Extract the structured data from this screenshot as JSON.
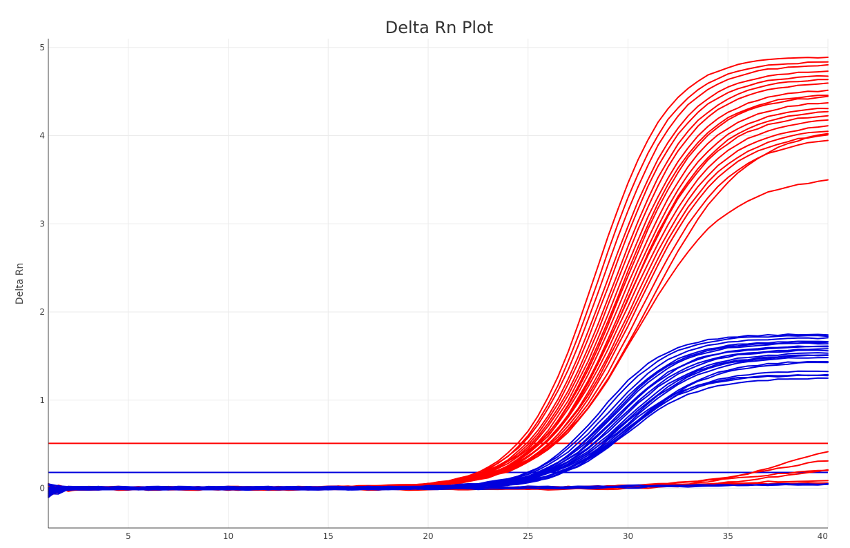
{
  "chart_data": {
    "type": "line",
    "title": "Delta Rn Plot",
    "xlabel": "",
    "ylabel": "Delta Rn",
    "xlim": [
      1,
      40
    ],
    "ylim": [
      -0.45,
      5.1
    ],
    "xticks": [
      5,
      10,
      15,
      20,
      25,
      30,
      35,
      40
    ],
    "yticks": [
      0,
      1,
      2,
      3,
      4,
      5
    ],
    "grid": true,
    "legend": "none",
    "colors": {
      "red": "#ff0000",
      "blue": "#0000dd",
      "axis": "#444444",
      "grid": "#ebebeb"
    },
    "thresholds": [
      {
        "color": "red",
        "value": 0.51
      },
      {
        "color": "blue",
        "value": 0.18
      }
    ],
    "curve_model": "y = plateau / (1 + exp(-slope * (cycle - midpoint)))",
    "series": [
      {
        "color": "red",
        "plateau": 4.9,
        "midpoint": 28.4,
        "slope": 0.55
      },
      {
        "color": "red",
        "plateau": 4.85,
        "midpoint": 28.6,
        "slope": 0.54
      },
      {
        "color": "red",
        "plateau": 4.8,
        "midpoint": 28.8,
        "slope": 0.53
      },
      {
        "color": "red",
        "plateau": 4.75,
        "midpoint": 29.0,
        "slope": 0.52
      },
      {
        "color": "red",
        "plateau": 4.7,
        "midpoint": 29.1,
        "slope": 0.52
      },
      {
        "color": "red",
        "plateau": 4.65,
        "midpoint": 29.3,
        "slope": 0.51
      },
      {
        "color": "red",
        "plateau": 4.6,
        "midpoint": 29.4,
        "slope": 0.51
      },
      {
        "color": "red",
        "plateau": 4.55,
        "midpoint": 29.5,
        "slope": 0.5
      },
      {
        "color": "red",
        "plateau": 4.5,
        "midpoint": 29.6,
        "slope": 0.5
      },
      {
        "color": "red",
        "plateau": 4.45,
        "midpoint": 29.7,
        "slope": 0.5
      },
      {
        "color": "red",
        "plateau": 4.4,
        "midpoint": 29.8,
        "slope": 0.49
      },
      {
        "color": "red",
        "plateau": 4.35,
        "midpoint": 29.9,
        "slope": 0.49
      },
      {
        "color": "red",
        "plateau": 4.3,
        "midpoint": 30.0,
        "slope": 0.48
      },
      {
        "color": "red",
        "plateau": 4.25,
        "midpoint": 30.0,
        "slope": 0.48
      },
      {
        "color": "red",
        "plateau": 4.2,
        "midpoint": 30.1,
        "slope": 0.47
      },
      {
        "color": "red",
        "plateau": 4.15,
        "midpoint": 30.2,
        "slope": 0.47
      },
      {
        "color": "red",
        "plateau": 4.1,
        "midpoint": 30.3,
        "slope": 0.46
      },
      {
        "color": "red",
        "plateau": 4.05,
        "midpoint": 30.4,
        "slope": 0.46
      },
      {
        "color": "red",
        "plateau": 4.0,
        "midpoint": 30.6,
        "slope": 0.45
      },
      {
        "color": "red",
        "plateau": 4.1,
        "midpoint": 31.0,
        "slope": 0.42
      },
      {
        "color": "red",
        "plateau": 3.55,
        "midpoint": 30.4,
        "slope": 0.44
      },
      {
        "color": "red",
        "plateau": 0.6,
        "midpoint": 38.0,
        "slope": 0.45
      },
      {
        "color": "red",
        "plateau": 0.4,
        "midpoint": 37.0,
        "slope": 0.4
      },
      {
        "color": "red",
        "plateau": 0.3,
        "midpoint": 37.5,
        "slope": 0.4
      },
      {
        "color": "red",
        "plateau": 0.25,
        "midpoint": 36.0,
        "slope": 0.35
      },
      {
        "color": "red",
        "plateau": 0.1,
        "midpoint": 34.0,
        "slope": 0.3
      },
      {
        "color": "red",
        "plateau": 0.06,
        "midpoint": 32.0,
        "slope": 0.3
      },
      {
        "color": "blue",
        "plateau": 1.75,
        "midpoint": 28.6,
        "slope": 0.6
      },
      {
        "color": "blue",
        "plateau": 1.72,
        "midpoint": 28.8,
        "slope": 0.59
      },
      {
        "color": "blue",
        "plateau": 1.7,
        "midpoint": 29.0,
        "slope": 0.58
      },
      {
        "color": "blue",
        "plateau": 1.68,
        "midpoint": 29.1,
        "slope": 0.58
      },
      {
        "color": "blue",
        "plateau": 1.66,
        "midpoint": 29.2,
        "slope": 0.57
      },
      {
        "color": "blue",
        "plateau": 1.64,
        "midpoint": 29.3,
        "slope": 0.57
      },
      {
        "color": "blue",
        "plateau": 1.62,
        "midpoint": 29.4,
        "slope": 0.56
      },
      {
        "color": "blue",
        "plateau": 1.6,
        "midpoint": 29.5,
        "slope": 0.56
      },
      {
        "color": "blue",
        "plateau": 1.58,
        "midpoint": 29.6,
        "slope": 0.55
      },
      {
        "color": "blue",
        "plateau": 1.56,
        "midpoint": 29.7,
        "slope": 0.55
      },
      {
        "color": "blue",
        "plateau": 1.54,
        "midpoint": 29.8,
        "slope": 0.54
      },
      {
        "color": "blue",
        "plateau": 1.52,
        "midpoint": 29.9,
        "slope": 0.54
      },
      {
        "color": "blue",
        "plateau": 1.5,
        "midpoint": 30.0,
        "slope": 0.53
      },
      {
        "color": "blue",
        "plateau": 1.48,
        "midpoint": 30.1,
        "slope": 0.53
      },
      {
        "color": "blue",
        "plateau": 1.46,
        "midpoint": 30.2,
        "slope": 0.52
      },
      {
        "color": "blue",
        "plateau": 1.44,
        "midpoint": 30.3,
        "slope": 0.52
      },
      {
        "color": "blue",
        "plateau": 1.35,
        "midpoint": 30.0,
        "slope": 0.55
      },
      {
        "color": "blue",
        "plateau": 1.3,
        "midpoint": 29.6,
        "slope": 0.58
      },
      {
        "color": "blue",
        "plateau": 1.28,
        "midpoint": 29.8,
        "slope": 0.56
      },
      {
        "color": "blue",
        "plateau": 1.26,
        "midpoint": 29.9,
        "slope": 0.56
      },
      {
        "color": "blue",
        "plateau": 0.07,
        "midpoint": 34.0,
        "slope": 0.3
      },
      {
        "color": "blue",
        "plateau": 0.05,
        "midpoint": 32.0,
        "slope": 0.3
      },
      {
        "color": "blue",
        "plateau": 0.03,
        "midpoint": 30.0,
        "slope": 0.3
      }
    ]
  }
}
